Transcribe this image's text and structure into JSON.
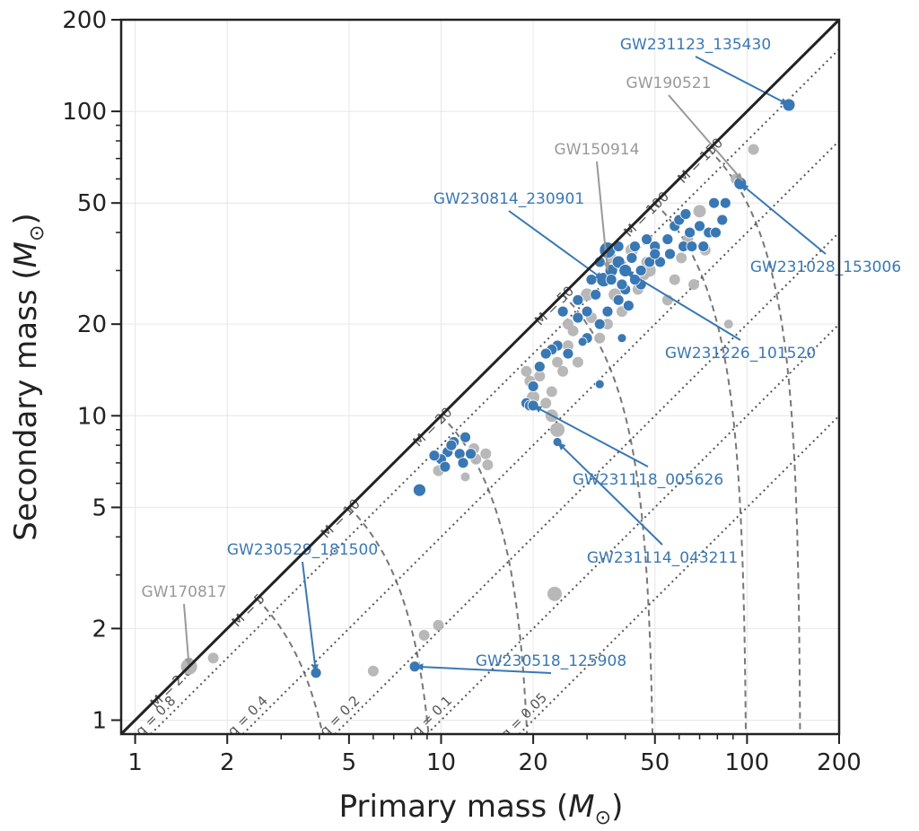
{
  "chart_data": {
    "type": "scatter",
    "xlabel_prefix": "Primary mass (",
    "xlabel_symbol": "M",
    "xlabel_suffix": ")",
    "ylabel_prefix": "Secondary mass (",
    "ylabel_symbol": "M",
    "ylabel_suffix": ")",
    "xscale": "log",
    "yscale": "log",
    "xlim": [
      0.9,
      200
    ],
    "ylim": [
      0.9,
      200
    ],
    "x_ticks": [
      1,
      2,
      5,
      10,
      20,
      50,
      100,
      200
    ],
    "y_ticks": [
      1,
      2,
      5,
      10,
      20,
      50,
      100,
      200
    ],
    "grid": true,
    "colors": {
      "highlight": "#3a78b4",
      "other": "#b4b4b4",
      "annotation_gray": "#999999",
      "axes": "#222222",
      "contour": "#777777"
    },
    "total_mass_contours": [
      5,
      10,
      20,
      50,
      100,
      150
    ],
    "total_mass_labels": [
      {
        "M": 2.8,
        "text": "M = 2.8"
      },
      {
        "M": 5,
        "text": "M = 5"
      },
      {
        "M": 10,
        "text": "M = 10"
      },
      {
        "M": 20,
        "text": "M = 20"
      },
      {
        "M": 50,
        "text": "M = 50"
      },
      {
        "M": 100,
        "text": "M = 100"
      },
      {
        "M": 150,
        "text": "M = 150"
      }
    ],
    "mass_ratio_lines": [
      0.8,
      0.4,
      0.2,
      0.1,
      0.05
    ],
    "mass_ratio_labels": [
      {
        "q": 0.8,
        "text": "q = 0.8"
      },
      {
        "q": 0.4,
        "text": "q = 0.4"
      },
      {
        "q": 0.2,
        "text": "q = 0.2"
      },
      {
        "q": 0.1,
        "text": "q = 0.1"
      },
      {
        "q": 0.05,
        "text": "q = 0.05"
      }
    ],
    "series": [
      {
        "points": [
          [
            137,
            105,
            7
          ],
          [
            95,
            58,
            7
          ],
          [
            35,
            35,
            9
          ],
          [
            34,
            28,
            8
          ],
          [
            36,
            30,
            7
          ],
          [
            38,
            32,
            7
          ],
          [
            30,
            22,
            6
          ],
          [
            32,
            25,
            6
          ],
          [
            40,
            30,
            7
          ],
          [
            42,
            33,
            6
          ],
          [
            45,
            30,
            6
          ],
          [
            48,
            32,
            6
          ],
          [
            50,
            36,
            6
          ],
          [
            55,
            38,
            6
          ],
          [
            58,
            42,
            6
          ],
          [
            60,
            44,
            6
          ],
          [
            63,
            46,
            6
          ],
          [
            65,
            40,
            6
          ],
          [
            70,
            42,
            6
          ],
          [
            72,
            36,
            6
          ],
          [
            75,
            40,
            6
          ],
          [
            78,
            50,
            6
          ],
          [
            85,
            50,
            6
          ],
          [
            62,
            36,
            6
          ],
          [
            56,
            34,
            6
          ],
          [
            52,
            32,
            6
          ],
          [
            45,
            27,
            6
          ],
          [
            43,
            28,
            6
          ],
          [
            40,
            26,
            6
          ],
          [
            38,
            24,
            6
          ],
          [
            35,
            22,
            6
          ],
          [
            33,
            20,
            6
          ],
          [
            30,
            18,
            6
          ],
          [
            28,
            21,
            6
          ],
          [
            26,
            16,
            6
          ],
          [
            25,
            22,
            6
          ],
          [
            24,
            17,
            6
          ],
          [
            23,
            16.5,
            6
          ],
          [
            22,
            16,
            6
          ],
          [
            21,
            14.5,
            6
          ],
          [
            20,
            12.5,
            6
          ],
          [
            19,
            11,
            6
          ],
          [
            19.5,
            10.8,
            6
          ],
          [
            20,
            10.8,
            6
          ],
          [
            33,
            12.7,
            5
          ],
          [
            24,
            8.2,
            5
          ],
          [
            29,
            17.5,
            5
          ],
          [
            39,
            18,
            5
          ],
          [
            11,
            8.2,
            6
          ],
          [
            12,
            8.5,
            6
          ],
          [
            11.5,
            7.5,
            6
          ],
          [
            10.5,
            7.6,
            6
          ],
          [
            10,
            7.2,
            6
          ],
          [
            9.5,
            7.4,
            6
          ],
          [
            10.3,
            6.8,
            6
          ],
          [
            11.8,
            7.0,
            6
          ],
          [
            12.5,
            7.5,
            6
          ],
          [
            10.8,
            8.0,
            6
          ],
          [
            8.5,
            5.7,
            7
          ],
          [
            3.9,
            1.43,
            6
          ],
          [
            8.2,
            1.5,
            6
          ],
          [
            43,
            36,
            6
          ],
          [
            47,
            38,
            6
          ],
          [
            38,
            36,
            6
          ],
          [
            36,
            28,
            6
          ],
          [
            31,
            28,
            6
          ],
          [
            33,
            32,
            6
          ],
          [
            39,
            27,
            6
          ],
          [
            41,
            23,
            6
          ],
          [
            50,
            34,
            6
          ],
          [
            66,
            36,
            6
          ],
          [
            79,
            40,
            6
          ],
          [
            83,
            44,
            6
          ],
          [
            28,
            24,
            6
          ]
        ]
      },
      {
        "points": [
          [
            105,
            75,
            6
          ],
          [
            92,
            60,
            6
          ],
          [
            87,
            20,
            5
          ],
          [
            70,
            47,
            7
          ],
          [
            67,
            27,
            6
          ],
          [
            64,
            38,
            6
          ],
          [
            58,
            28,
            6
          ],
          [
            55,
            24,
            6
          ],
          [
            48,
            30,
            7
          ],
          [
            46,
            29,
            6
          ],
          [
            42,
            35,
            7
          ],
          [
            37,
            25,
            7
          ],
          [
            35,
            20,
            6
          ],
          [
            33,
            18,
            6
          ],
          [
            30,
            25,
            7
          ],
          [
            27,
            19,
            6
          ],
          [
            26,
            17,
            6
          ],
          [
            25,
            14,
            6
          ],
          [
            24,
            15,
            6
          ],
          [
            23,
            12,
            6
          ],
          [
            22,
            11,
            6
          ],
          [
            21,
            13.5,
            6
          ],
          [
            20,
            11.5,
            7
          ],
          [
            19,
            14,
            6
          ],
          [
            19.5,
            13,
            6
          ],
          [
            28,
            15,
            6
          ],
          [
            23,
            10,
            7
          ],
          [
            24,
            9,
            8
          ],
          [
            14,
            7.5,
            6
          ],
          [
            13,
            7.2,
            6
          ],
          [
            14.2,
            6.9,
            6
          ],
          [
            12,
            6.3,
            5
          ],
          [
            9.8,
            6.6,
            6
          ],
          [
            12.8,
            7.8,
            6
          ],
          [
            23.5,
            2.6,
            8
          ],
          [
            8.8,
            1.9,
            6
          ],
          [
            9.8,
            2.05,
            6
          ],
          [
            6,
            1.45,
            6
          ],
          [
            1.5,
            1.5,
            9
          ],
          [
            1.8,
            1.6,
            6
          ],
          [
            47,
            32,
            6
          ],
          [
            44,
            26,
            6
          ],
          [
            39,
            22,
            6
          ],
          [
            61,
            33,
            6
          ],
          [
            73,
            35,
            6
          ],
          [
            36,
            33,
            6
          ],
          [
            31,
            21,
            6
          ],
          [
            26,
            20,
            6
          ]
        ]
      }
    ],
    "annotations": [
      {
        "text": "GW231123_135430",
        "color": "highlight",
        "x": 137,
        "y": 105
      },
      {
        "text": "GW190521",
        "color": "annotation_gray",
        "x": 97,
        "y": 59
      },
      {
        "text": "GW150914",
        "color": "annotation_gray",
        "x": 35,
        "y": 30
      },
      {
        "text": "GW230814_230901",
        "color": "highlight",
        "x": 34,
        "y": 28
      },
      {
        "text": "GW231028_153006",
        "color": "highlight",
        "x": 95,
        "y": 58
      },
      {
        "text": "GW231226_101520",
        "color": "highlight",
        "x": 40,
        "y": 30
      },
      {
        "text": "GW231118_005626",
        "color": "highlight",
        "x": 20,
        "y": 10.8
      },
      {
        "text": "GW231114_043211",
        "color": "highlight",
        "x": 24,
        "y": 8.2
      },
      {
        "text": "GW230529_181500",
        "color": "highlight",
        "x": 3.9,
        "y": 1.43
      },
      {
        "text": "GW230518_125908",
        "color": "highlight",
        "x": 8.2,
        "y": 1.5
      },
      {
        "text": "GW170817",
        "color": "annotation_gray",
        "x": 1.5,
        "y": 1.5
      }
    ]
  }
}
